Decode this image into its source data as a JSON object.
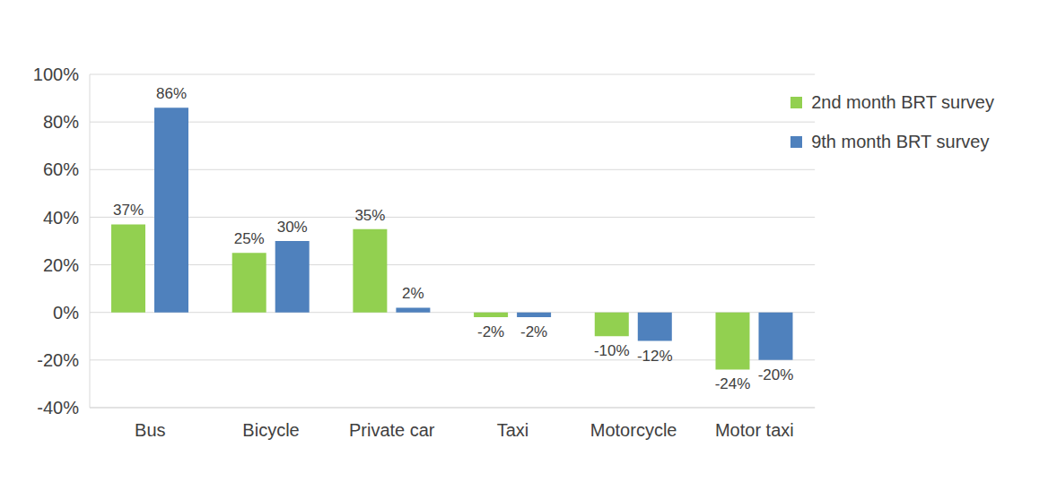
{
  "chart_data": {
    "type": "bar",
    "categories": [
      "Bus",
      "Bicycle",
      "Private car",
      "Taxi",
      "Motorcycle",
      "Motor taxi"
    ],
    "series": [
      {
        "name": "2nd month BRT survey",
        "color": "#92d050",
        "values": [
          37,
          25,
          35,
          -2,
          -10,
          -24
        ],
        "value_labels": [
          "37%",
          "25%",
          "35%",
          "-2%",
          "-10%",
          "-24%"
        ]
      },
      {
        "name": "9th month BRT survey",
        "color": "#4f81bd",
        "values": [
          86,
          30,
          2,
          -2,
          -12,
          -20
        ],
        "value_labels": [
          "86%",
          "30%",
          "2%",
          "-2%",
          "-12%",
          "-20%"
        ]
      }
    ],
    "ylim": [
      -40,
      100
    ],
    "yticks": [
      {
        "value": -40,
        "label": "-40%"
      },
      {
        "value": -20,
        "label": "-20%"
      },
      {
        "value": 0,
        "label": "0%"
      },
      {
        "value": 20,
        "label": "20%"
      },
      {
        "value": 40,
        "label": "40%"
      },
      {
        "value": 60,
        "label": "60%"
      },
      {
        "value": 80,
        "label": "80%"
      },
      {
        "value": 100,
        "label": "100%"
      }
    ],
    "grid": true,
    "legend": "top-right",
    "data_labels": true
  }
}
